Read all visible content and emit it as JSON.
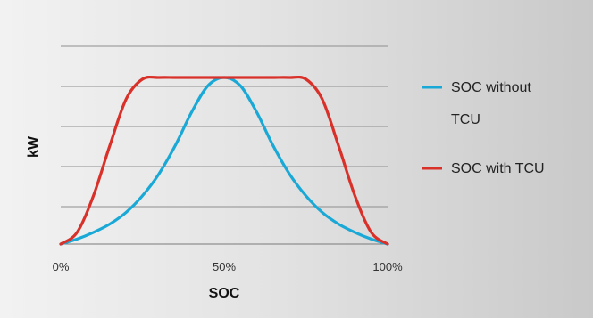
{
  "chart_data": {
    "type": "line",
    "title": "",
    "xlabel": "SOC",
    "ylabel": "kW",
    "x_ticks": [
      "0%",
      "50%",
      "100%"
    ],
    "xlim": [
      0,
      100
    ],
    "ylim": [
      0,
      1
    ],
    "grid": "horizontal",
    "legend_position": "right",
    "series": [
      {
        "name": "SOC without TCU",
        "color": "#1aa9d6",
        "x": [
          0,
          5,
          10,
          15,
          20,
          25,
          30,
          35,
          40,
          45,
          50,
          55,
          60,
          65,
          70,
          75,
          80,
          85,
          90,
          95,
          100
        ],
        "y": [
          0.0,
          0.03,
          0.07,
          0.12,
          0.19,
          0.29,
          0.42,
          0.59,
          0.79,
          0.95,
          1.0,
          0.95,
          0.79,
          0.59,
          0.42,
          0.29,
          0.19,
          0.12,
          0.07,
          0.03,
          0.0
        ]
      },
      {
        "name": "SOC with TCU",
        "color": "#d9312a",
        "x": [
          0,
          5,
          10,
          15,
          20,
          25,
          30,
          35,
          40,
          45,
          50,
          55,
          60,
          65,
          70,
          75,
          80,
          85,
          90,
          95,
          100
        ],
        "y": [
          0.0,
          0.07,
          0.29,
          0.59,
          0.87,
          0.99,
          1.0,
          1.0,
          1.0,
          1.0,
          1.0,
          1.0,
          1.0,
          1.0,
          1.0,
          0.99,
          0.87,
          0.59,
          0.29,
          0.07,
          0.0
        ]
      }
    ]
  }
}
